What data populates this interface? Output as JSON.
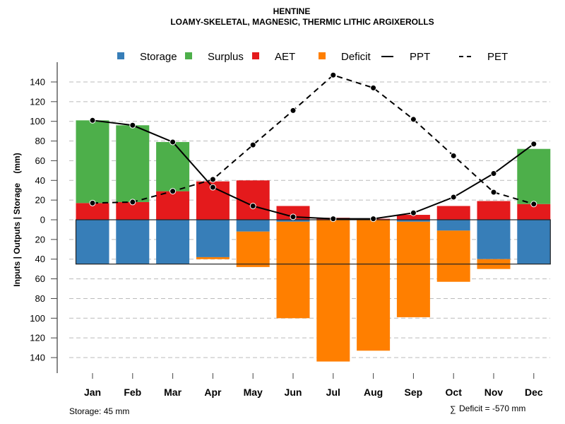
{
  "chart_data": {
    "type": "bar",
    "title": "HENTINE",
    "subtitle": "LOAMY-SKELETAL, MAGNESIC, THERMIC LITHIC ARGIXEROLLS",
    "xlabel": "",
    "ylabel": "Inputs | Outputs | Storage    (mm)",
    "ylim": [
      -150,
      150
    ],
    "yticks": [
      140,
      120,
      100,
      80,
      60,
      40,
      20,
      0,
      20,
      40,
      60,
      80,
      100,
      120,
      140
    ],
    "ytick_values": [
      140,
      120,
      100,
      80,
      60,
      40,
      20,
      0,
      -20,
      -40,
      -60,
      -80,
      -100,
      -120,
      -140
    ],
    "grid": true,
    "legend_position": "top",
    "categories": [
      "Jan",
      "Feb",
      "Mar",
      "Apr",
      "May",
      "Jun",
      "Jul",
      "Aug",
      "Sep",
      "Oct",
      "Nov",
      "Dec"
    ],
    "legend": [
      {
        "name": "Storage",
        "kind": "box",
        "color": "#377EB8"
      },
      {
        "name": "Surplus",
        "kind": "box",
        "color": "#4DAF4A"
      },
      {
        "name": "AET",
        "kind": "box",
        "color": "#E41A1C"
      },
      {
        "name": "Deficit",
        "kind": "box",
        "color": "#FF7F00"
      },
      {
        "name": "PPT",
        "kind": "solid-line",
        "color": "#000000"
      },
      {
        "name": "PET",
        "kind": "dashed-line",
        "color": "#000000"
      }
    ],
    "series": [
      {
        "name": "AET",
        "color": "#E41A1C",
        "values": [
          17,
          18,
          29,
          39,
          40,
          14,
          2,
          1,
          5,
          14,
          19,
          16
        ]
      },
      {
        "name": "Surplus",
        "color": "#4DAF4A",
        "values": [
          84,
          78,
          50,
          0,
          0,
          0,
          0,
          0,
          0,
          0,
          0,
          56
        ]
      },
      {
        "name": "Storage",
        "color": "#377EB8",
        "values": [
          45,
          45,
          45,
          38,
          12,
          2,
          0,
          0,
          2,
          11,
          40,
          45
        ]
      },
      {
        "name": "Deficit",
        "color": "#FF7F00",
        "values": [
          0,
          0,
          0,
          2,
          36,
          98,
          144,
          133,
          97,
          52,
          10,
          0
        ]
      },
      {
        "name": "PPT",
        "color": "#000000",
        "values": [
          101,
          96,
          79,
          33,
          14,
          3,
          1,
          1,
          7,
          23,
          47,
          77
        ]
      },
      {
        "name": "PET",
        "color": "#000000",
        "values": [
          17,
          18,
          29,
          41,
          76,
          111,
          147,
          134,
          102,
          65,
          28,
          16
        ]
      }
    ],
    "storage_capacity": 45,
    "annotations": {
      "storage": "Storage: 45 mm",
      "deficit_sum": "Deficit = -570 mm",
      "deficit_sum_symbol": "∑"
    }
  }
}
